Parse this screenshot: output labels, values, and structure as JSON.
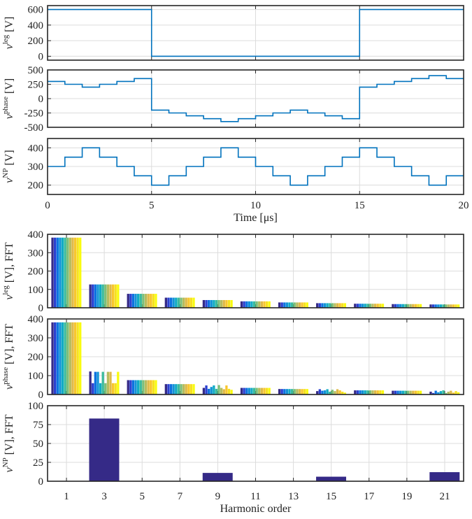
{
  "chart_data": [
    {
      "type": "line",
      "ylabel": {
        "main": "v",
        "sup": "leg",
        "unit": " [V]"
      },
      "ylim": [
        -50,
        650
      ],
      "yticks": [
        0,
        200,
        400,
        600
      ],
      "xlim": [
        0,
        20
      ],
      "grid": true,
      "series": [
        {
          "x": [
            0,
            5,
            5,
            15,
            15,
            20
          ],
          "y": [
            600,
            600,
            0,
            0,
            600,
            600
          ]
        }
      ]
    },
    {
      "type": "line",
      "ylabel": {
        "main": "v",
        "sup": "phase",
        "unit": " [V]"
      },
      "ylim": [
        -500,
        500
      ],
      "yticks": [
        -500,
        -250,
        0,
        250,
        500
      ],
      "xlim": [
        0,
        20
      ],
      "grid": true,
      "series": [
        {
          "x": [
            0,
            0.8333,
            0.8333,
            1.6667,
            1.6667,
            2.5,
            2.5,
            3.3333,
            3.3333,
            4.1667,
            4.1667,
            5,
            5,
            5.8333,
            5.8333,
            6.6667,
            6.6667,
            7.5,
            7.5,
            8.3333,
            8.3333,
            9.1667,
            9.1667,
            10,
            10,
            10.8333,
            10.8333,
            11.6667,
            11.6667,
            12.5,
            12.5,
            13.3333,
            13.3333,
            14.1667,
            14.1667,
            15,
            15,
            15.8333,
            15.8333,
            16.6667,
            16.6667,
            17.5,
            17.5,
            18.3333,
            18.3333,
            19.1667,
            19.1667,
            20
          ],
          "y": [
            300,
            300,
            250,
            250,
            200,
            200,
            250,
            250,
            300,
            300,
            350,
            350,
            -200,
            -200,
            -250,
            -250,
            -300,
            -300,
            -350,
            -350,
            -400,
            -400,
            -350,
            -350,
            -300,
            -300,
            -250,
            -250,
            -200,
            -200,
            -250,
            -250,
            -300,
            -300,
            -350,
            -350,
            200,
            200,
            250,
            250,
            300,
            300,
            350,
            350,
            400,
            400,
            350,
            350
          ]
        }
      ]
    },
    {
      "type": "line",
      "ylabel": {
        "main": "v",
        "sup": "NP",
        "unit": " [V]"
      },
      "ylim": [
        150,
        450
      ],
      "yticks": [
        200,
        300,
        400
      ],
      "xlim": [
        0,
        20
      ],
      "xticks": [
        "0",
        "5",
        "10",
        "15",
        "20"
      ],
      "xlabel": "Time [μs]",
      "grid": true,
      "series": [
        {
          "x": [
            0,
            0.8333,
            0.8333,
            1.6667,
            1.6667,
            2.5,
            2.5,
            3.3333,
            3.3333,
            4.1667,
            4.1667,
            5,
            5,
            5.8333,
            5.8333,
            6.6667,
            6.6667,
            7.5,
            7.5,
            8.3333,
            8.3333,
            9.1667,
            9.1667,
            10,
            10,
            10.8333,
            10.8333,
            11.6667,
            11.6667,
            12.5,
            12.5,
            13.3333,
            13.3333,
            14.1667,
            14.1667,
            15,
            15,
            15.8333,
            15.8333,
            16.6667,
            16.6667,
            17.5,
            17.5,
            18.3333,
            18.3333,
            19.1667,
            19.1667,
            20
          ],
          "y": [
            300,
            300,
            350,
            350,
            400,
            400,
            350,
            350,
            300,
            300,
            250,
            250,
            200,
            200,
            250,
            250,
            300,
            300,
            350,
            350,
            400,
            400,
            350,
            350,
            300,
            300,
            250,
            250,
            200,
            200,
            250,
            250,
            300,
            300,
            350,
            350,
            400,
            400,
            350,
            350,
            300,
            300,
            250,
            250,
            200,
            200,
            250,
            250
          ]
        }
      ]
    },
    {
      "type": "bar",
      "ylabel": {
        "main": "v",
        "sup": "leg",
        "unit": " [V], FFT"
      },
      "ylim": [
        0,
        400
      ],
      "yticks": [
        0,
        100,
        200,
        300,
        400
      ],
      "categories": [
        "1",
        "3",
        "5",
        "7",
        "9",
        "11",
        "13",
        "15",
        "17",
        "19",
        "21"
      ],
      "grid": true,
      "bars_per_group": 12,
      "values": [
        [
          382,
          382,
          382,
          382,
          382,
          382,
          382,
          382,
          382,
          382,
          382,
          382
        ],
        [
          127,
          127,
          127,
          127,
          127,
          127,
          127,
          127,
          127,
          127,
          127,
          127
        ],
        [
          76,
          76,
          76,
          76,
          76,
          76,
          76,
          76,
          76,
          76,
          76,
          76
        ],
        [
          55,
          55,
          55,
          55,
          55,
          55,
          55,
          55,
          55,
          55,
          55,
          55
        ],
        [
          42,
          42,
          42,
          42,
          42,
          42,
          42,
          42,
          42,
          42,
          42,
          42
        ],
        [
          35,
          35,
          35,
          35,
          35,
          35,
          35,
          35,
          35,
          35,
          35,
          35
        ],
        [
          29,
          29,
          29,
          29,
          29,
          29,
          29,
          29,
          29,
          29,
          29,
          29
        ],
        [
          25,
          25,
          25,
          25,
          25,
          25,
          25,
          25,
          25,
          25,
          25,
          25
        ],
        [
          22,
          22,
          22,
          22,
          22,
          22,
          22,
          22,
          22,
          22,
          22,
          22
        ],
        [
          20,
          20,
          20,
          20,
          20,
          20,
          20,
          20,
          20,
          20,
          20,
          20
        ],
        [
          18,
          18,
          18,
          18,
          18,
          18,
          18,
          18,
          18,
          18,
          18,
          18
        ]
      ]
    },
    {
      "type": "bar",
      "ylabel": {
        "main": "v",
        "sup": "phase",
        "unit": " [V], FFT"
      },
      "ylim": [
        0,
        400
      ],
      "yticks": [
        0,
        100,
        200,
        300,
        400
      ],
      "categories": [
        "1",
        "3",
        "5",
        "7",
        "9",
        "11",
        "13",
        "15",
        "17",
        "19",
        "21"
      ],
      "grid": true,
      "bars_per_group": 12,
      "values": [
        [
          382,
          382,
          382,
          382,
          382,
          382,
          382,
          382,
          382,
          382,
          382,
          382
        ],
        [
          122,
          60,
          120,
          120,
          60,
          120,
          60,
          120,
          120,
          60,
          60,
          120
        ],
        [
          76,
          76,
          76,
          76,
          76,
          76,
          76,
          76,
          76,
          76,
          76,
          76
        ],
        [
          55,
          55,
          55,
          55,
          55,
          55,
          55,
          55,
          55,
          55,
          55,
          55
        ],
        [
          35,
          48,
          30,
          40,
          48,
          30,
          50,
          35,
          28,
          48,
          30,
          25
        ],
        [
          35,
          35,
          35,
          35,
          35,
          35,
          35,
          35,
          35,
          35,
          35,
          35
        ],
        [
          29,
          29,
          29,
          29,
          29,
          29,
          29,
          29,
          29,
          29,
          29,
          29
        ],
        [
          18,
          28,
          20,
          22,
          28,
          15,
          25,
          18,
          28,
          22,
          15,
          10
        ],
        [
          22,
          22,
          22,
          22,
          22,
          22,
          22,
          22,
          22,
          22,
          22,
          22
        ],
        [
          20,
          20,
          20,
          20,
          20,
          20,
          20,
          20,
          20,
          20,
          20,
          20
        ],
        [
          15,
          8,
          20,
          12,
          18,
          22,
          8,
          15,
          20,
          10,
          18,
          12
        ]
      ]
    },
    {
      "type": "bar",
      "ylabel": {
        "main": "v",
        "sup": "NP",
        "unit": " [V], FFT"
      },
      "ylim": [
        0,
        100
      ],
      "yticks": [
        0,
        25,
        50,
        75,
        100
      ],
      "categories": [
        "1",
        "3",
        "5",
        "7",
        "9",
        "11",
        "13",
        "15",
        "17",
        "19",
        "21"
      ],
      "xlabel": "Harmonic order",
      "grid": true,
      "bars_per_group": 1,
      "values": [
        [
          0
        ],
        [
          83
        ],
        [
          0
        ],
        [
          0
        ],
        [
          11
        ],
        [
          0
        ],
        [
          0
        ],
        [
          6
        ],
        [
          0
        ],
        [
          0
        ],
        [
          12
        ]
      ]
    }
  ]
}
